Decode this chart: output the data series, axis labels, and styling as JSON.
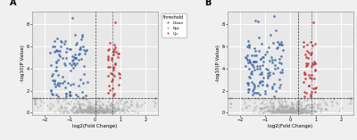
{
  "panel_A": {
    "label": "A",
    "xlabel": "log2(Fold Change)",
    "ylabel": "-log10(P Value)",
    "xlim": [
      -2.5,
      2.5
    ],
    "ylim": [
      -0.2,
      9.2
    ],
    "yticks": [
      0,
      2,
      4,
      6,
      8
    ],
    "xticks": [
      -2,
      -1,
      0,
      1,
      2
    ],
    "vline1": 0.0,
    "vline2": 0.7,
    "hline": 1.3,
    "down_color": "#4169AA",
    "up_color": "#CC3333",
    "not_color": "#AAAAAA",
    "background": "#E8E8E8",
    "grid_color": "#FFFFFF"
  },
  "panel_B": {
    "label": "B",
    "xlabel": "log2(Fold Change)",
    "ylabel": "-log10(P Value)",
    "xlim": [
      -2.5,
      2.5
    ],
    "ylim": [
      -0.2,
      9.2
    ],
    "yticks": [
      0,
      2,
      4,
      6,
      8
    ],
    "xticks": [
      -2,
      -1,
      0,
      1,
      2
    ],
    "vline1": 0.3,
    "vline2": 0.85,
    "hline": 1.3,
    "down_color": "#4169AA",
    "up_color": "#CC3333",
    "not_color": "#AAAAAA",
    "background": "#E8E8E8",
    "grid_color": "#FFFFFF"
  },
  "legend_labels": [
    "Down",
    "Not",
    "Up"
  ],
  "legend_colors": [
    "#4169AA",
    "#AAAAAA",
    "#CC3333"
  ],
  "fig_bg": "#F0F0F0"
}
